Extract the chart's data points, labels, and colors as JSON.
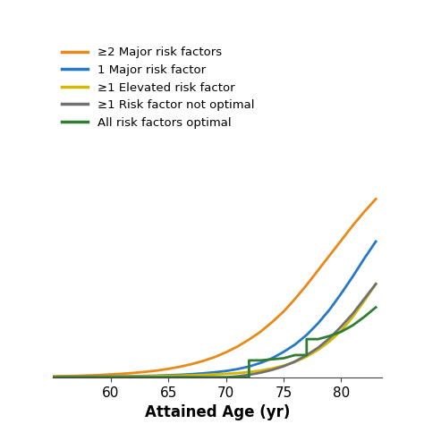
{
  "x_ages": [
    55,
    56,
    57,
    58,
    59,
    60,
    61,
    62,
    63,
    64,
    65,
    66,
    67,
    68,
    69,
    70,
    71,
    72,
    73,
    74,
    75,
    76,
    77,
    78,
    79,
    80,
    81,
    82,
    83
  ],
  "ge2_major": [
    0.5,
    0.6,
    0.7,
    0.9,
    1.1,
    1.4,
    1.7,
    2.1,
    2.6,
    3.2,
    4.0,
    5.0,
    6.2,
    7.7,
    9.5,
    11.8,
    14.5,
    17.8,
    21.5,
    26.0,
    31.0,
    37.0,
    43.5,
    50.5,
    57.5,
    64.5,
    71.5,
    78.0,
    84.0
  ],
  "one_major": [
    0.2,
    0.25,
    0.3,
    0.35,
    0.4,
    0.45,
    0.5,
    0.6,
    0.7,
    0.8,
    1.0,
    1.2,
    1.5,
    1.9,
    2.4,
    3.0,
    3.9,
    5.1,
    6.8,
    9.0,
    12.0,
    15.5,
    20.0,
    25.5,
    32.0,
    39.5,
    47.5,
    56.0,
    64.0
  ],
  "ge1_elevated": [
    0.2,
    0.22,
    0.25,
    0.28,
    0.32,
    0.36,
    0.4,
    0.45,
    0.52,
    0.6,
    0.7,
    0.82,
    0.97,
    1.15,
    1.38,
    1.65,
    2.0,
    2.5,
    3.2,
    4.2,
    5.5,
    7.3,
    9.8,
    13.0,
    17.0,
    22.0,
    28.5,
    36.0,
    44.0
  ],
  "ge1_not_optimal": [
    0.0,
    0.0,
    0.0,
    0.0,
    0.0,
    0.0,
    0.0,
    0.0,
    0.0,
    0.0,
    0.0,
    0.0,
    0.0,
    0.0,
    0.0,
    0.0,
    0.5,
    1.2,
    2.2,
    3.5,
    5.2,
    7.5,
    10.5,
    14.0,
    18.5,
    24.0,
    30.0,
    37.0,
    44.0
  ],
  "all_optimal_x": [
    55,
    56,
    57,
    58,
    59,
    60,
    61,
    62,
    63,
    64,
    65,
    66,
    67,
    68,
    69,
    70,
    71,
    72,
    72,
    73,
    74,
    75,
    76,
    77,
    77,
    78,
    79,
    80,
    81,
    82,
    83
  ],
  "all_optimal_y": [
    0.0,
    0.0,
    0.0,
    0.0,
    0.0,
    0.0,
    0.0,
    0.0,
    0.0,
    0.0,
    0.0,
    0.0,
    0.0,
    0.0,
    0.0,
    0.0,
    0.0,
    0.0,
    8.0,
    8.0,
    8.5,
    9.0,
    10.5,
    10.5,
    18.0,
    18.0,
    19.5,
    21.5,
    24.5,
    28.5,
    33.0
  ],
  "colors": {
    "ge2_major": "#E8891A",
    "one_major": "#2878C8",
    "ge1_elevated": "#D4B800",
    "ge1_not_optimal": "#707070",
    "all_optimal": "#2E7D32"
  },
  "legend_labels": [
    "≥2 Major risk factors",
    "1 Major risk factor",
    "≥1 Elevated risk factor",
    "≥1 Risk factor not optimal",
    "All risk factors optimal"
  ],
  "xlabel": "Attained Age (yr)",
  "xlim": [
    55,
    83.5
  ],
  "ylim": [
    0,
    90
  ],
  "xticks": [
    60,
    65,
    70,
    75,
    80
  ],
  "background_color": "#ffffff",
  "linewidth": 2.0
}
